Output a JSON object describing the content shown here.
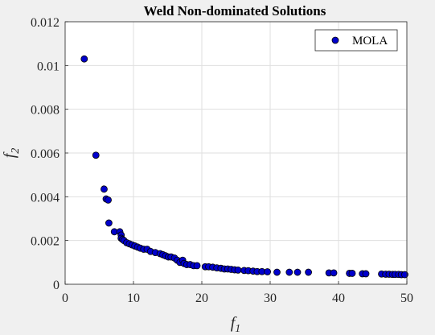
{
  "chart_data": {
    "type": "scatter",
    "title": "Weld Non-dominated Solutions",
    "xlabel": {
      "base": "f",
      "sub": "1"
    },
    "ylabel": {
      "base": "f",
      "sub": "2"
    },
    "xlim": [
      0,
      50
    ],
    "ylim": [
      0,
      0.012
    ],
    "xticks": [
      "0",
      "10",
      "20",
      "30",
      "40",
      "50"
    ],
    "yticks": [
      "0",
      "0.002",
      "0.004",
      "0.006",
      "0.008",
      "0.01",
      "0.012"
    ],
    "grid": true,
    "legend_position": "top-right",
    "series": [
      {
        "name": "MOLA",
        "color": "#0000cc",
        "edge_color": "#000000",
        "points": [
          [
            2.8,
            0.0103
          ],
          [
            4.5,
            0.0059
          ],
          [
            5.7,
            0.00435
          ],
          [
            6.0,
            0.0039
          ],
          [
            6.3,
            0.00385
          ],
          [
            6.4,
            0.0028
          ],
          [
            7.2,
            0.0024
          ],
          [
            8.0,
            0.0024
          ],
          [
            8.2,
            0.00225
          ],
          [
            8.2,
            0.0021
          ],
          [
            8.4,
            0.00205
          ],
          [
            8.6,
            0.002
          ],
          [
            9.0,
            0.0019
          ],
          [
            9.4,
            0.00185
          ],
          [
            9.8,
            0.0018
          ],
          [
            10.2,
            0.00175
          ],
          [
            10.6,
            0.0017
          ],
          [
            11.0,
            0.00165
          ],
          [
            11.5,
            0.0016
          ],
          [
            12.0,
            0.0016
          ],
          [
            12.5,
            0.0015
          ],
          [
            13.2,
            0.00145
          ],
          [
            13.9,
            0.0014
          ],
          [
            14.3,
            0.00135
          ],
          [
            14.7,
            0.0013
          ],
          [
            15.1,
            0.00125
          ],
          [
            15.5,
            0.00125
          ],
          [
            16.0,
            0.0012
          ],
          [
            16.4,
            0.0011
          ],
          [
            16.8,
            0.001
          ],
          [
            17.2,
            0.0011
          ],
          [
            17.4,
            0.00095
          ],
          [
            17.8,
            0.0009
          ],
          [
            18.3,
            0.0009
          ],
          [
            18.8,
            0.00085
          ],
          [
            19.3,
            0.00085
          ],
          [
            20.5,
            0.0008
          ],
          [
            21.0,
            0.0008
          ],
          [
            21.6,
            0.00078
          ],
          [
            22.2,
            0.00075
          ],
          [
            22.8,
            0.00073
          ],
          [
            23.3,
            0.0007
          ],
          [
            23.8,
            0.0007
          ],
          [
            24.3,
            0.00068
          ],
          [
            24.8,
            0.00066
          ],
          [
            25.3,
            0.00065
          ],
          [
            26.2,
            0.00063
          ],
          [
            26.8,
            0.00062
          ],
          [
            27.5,
            0.0006
          ],
          [
            28.1,
            0.00058
          ],
          [
            28.8,
            0.00058
          ],
          [
            29.6,
            0.00057
          ],
          [
            31.0,
            0.00055
          ],
          [
            32.8,
            0.00055
          ],
          [
            34.0,
            0.00055
          ],
          [
            35.6,
            0.00055
          ],
          [
            38.6,
            0.00052
          ],
          [
            39.3,
            0.00052
          ],
          [
            41.6,
            0.0005
          ],
          [
            42.0,
            0.0005
          ],
          [
            43.5,
            0.00048
          ],
          [
            44.0,
            0.00048
          ],
          [
            46.3,
            0.00047
          ],
          [
            46.9,
            0.00046
          ],
          [
            47.4,
            0.00046
          ],
          [
            47.9,
            0.00045
          ],
          [
            48.3,
            0.00045
          ],
          [
            48.8,
            0.00045
          ],
          [
            49.2,
            0.00044
          ],
          [
            49.7,
            0.00044
          ]
        ]
      }
    ]
  }
}
